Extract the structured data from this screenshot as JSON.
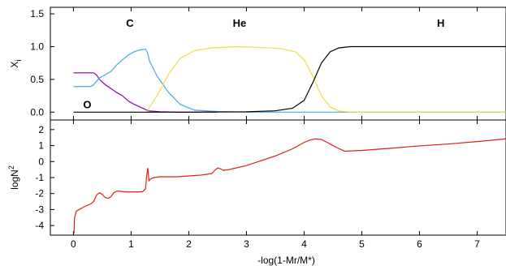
{
  "chart_data": [
    {
      "type": "line",
      "panel": "top",
      "ylabel_main": "X",
      "ylabel_sub": "i",
      "xlim": [
        -0.4,
        7.5
      ],
      "ylim": [
        -0.12,
        1.6
      ],
      "yticks": [
        "0.0",
        "0.5",
        "1.0",
        "1.5"
      ],
      "ytick_values": [
        0,
        0.5,
        1.0,
        1.5
      ],
      "grid": false,
      "annotations": [
        {
          "text": "C",
          "x": 0.98,
          "y": 1.3
        },
        {
          "text": "He",
          "x": 2.88,
          "y": 1.3
        },
        {
          "text": "H",
          "x": 6.37,
          "y": 1.3
        },
        {
          "text": "O",
          "x": 0.24,
          "y": 0.06
        }
      ],
      "series": [
        {
          "species": "O",
          "color": "#8800aa",
          "x": [
            0,
            0.35,
            0.4,
            0.45,
            0.55,
            0.65,
            0.75,
            0.85,
            0.95,
            1.05,
            1.15,
            1.25,
            1.3,
            1.5,
            1.8,
            2.5
          ],
          "y": [
            0.6,
            0.6,
            0.57,
            0.5,
            0.42,
            0.36,
            0.3,
            0.25,
            0.17,
            0.12,
            0.08,
            0.04,
            0.02,
            0.005,
            0.0,
            0.0
          ]
        },
        {
          "species": "C",
          "color": "#44aadd",
          "x": [
            0,
            0.3,
            0.35,
            0.45,
            0.55,
            0.65,
            0.75,
            0.85,
            0.95,
            1.05,
            1.15,
            1.25,
            1.28,
            1.32,
            1.45,
            1.65,
            1.85,
            2.1,
            2.5,
            3.0,
            7.5
          ],
          "y": [
            0.39,
            0.39,
            0.42,
            0.52,
            0.57,
            0.62,
            0.72,
            0.8,
            0.87,
            0.92,
            0.95,
            0.96,
            0.92,
            0.78,
            0.55,
            0.3,
            0.12,
            0.03,
            0.01,
            0.0,
            0.0
          ]
        },
        {
          "species": "He",
          "color": "#eedd44",
          "x": [
            1.28,
            1.3,
            1.45,
            1.65,
            1.85,
            2.1,
            2.4,
            2.8,
            3.2,
            3.6,
            3.85,
            4.0,
            4.15,
            4.3,
            4.45,
            4.6,
            4.8,
            7.5
          ],
          "y": [
            0.0,
            0.05,
            0.25,
            0.58,
            0.82,
            0.94,
            0.98,
            1.0,
            0.99,
            0.97,
            0.92,
            0.8,
            0.55,
            0.25,
            0.08,
            0.02,
            0.0,
            0.0
          ]
        },
        {
          "species": "H",
          "color": "#000000",
          "x": [
            0,
            2.0,
            3.0,
            3.5,
            3.8,
            4.0,
            4.15,
            4.3,
            4.45,
            4.6,
            4.8,
            5.2,
            7.5
          ],
          "y": [
            0.0,
            0.0,
            0.005,
            0.02,
            0.06,
            0.18,
            0.45,
            0.75,
            0.92,
            0.98,
            1.0,
            1.0,
            1.0
          ]
        }
      ]
    },
    {
      "type": "line",
      "panel": "bottom",
      "ylabel_main": "logN",
      "ylabel_sup": "2",
      "xlabel": "-log(1-Mr/M*)",
      "xlim": [
        -0.4,
        7.5
      ],
      "ylim": [
        -4.6,
        2.6
      ],
      "yticks": [
        "2",
        "1",
        "0",
        "-1",
        "-2",
        "-3",
        "-4"
      ],
      "ytick_values": [
        2,
        1,
        0,
        -1,
        -2,
        -3,
        -4
      ],
      "xticks": [
        "0",
        "1",
        "2",
        "3",
        "4",
        "5",
        "6",
        "7"
      ],
      "xtick_values": [
        0,
        1,
        2,
        3,
        4,
        5,
        6,
        7
      ],
      "grid": false,
      "series": [
        {
          "color": "#dd2211",
          "x": [
            0.01,
            0.02,
            0.05,
            0.1,
            0.2,
            0.3,
            0.35,
            0.4,
            0.45,
            0.5,
            0.55,
            0.6,
            0.65,
            0.7,
            0.75,
            0.8,
            0.9,
            1.0,
            1.1,
            1.2,
            1.25,
            1.27,
            1.29,
            1.31,
            1.35,
            1.4,
            1.5,
            1.6,
            1.8,
            2.0,
            2.2,
            2.4,
            2.45,
            2.5,
            2.55,
            2.6,
            2.7,
            3.0,
            3.5,
            3.8,
            4.0,
            4.1,
            4.2,
            4.3,
            4.4,
            4.5,
            4.6,
            4.7,
            5.0,
            5.5,
            6.0,
            6.5,
            7.0,
            7.5
          ],
          "y": [
            -4.5,
            -3.5,
            -3.1,
            -3.0,
            -2.8,
            -2.65,
            -2.5,
            -2.1,
            -1.95,
            -2.05,
            -2.25,
            -2.3,
            -2.2,
            -1.95,
            -1.85,
            -1.85,
            -1.9,
            -1.9,
            -1.9,
            -1.88,
            -1.7,
            -0.9,
            -0.4,
            -1.2,
            -1.05,
            -1.0,
            -0.95,
            -0.95,
            -0.95,
            -0.9,
            -0.85,
            -0.75,
            -0.55,
            -0.4,
            -0.45,
            -0.55,
            -0.5,
            -0.25,
            0.35,
            0.8,
            1.2,
            1.35,
            1.42,
            1.38,
            1.2,
            1.0,
            0.82,
            0.65,
            0.7,
            0.83,
            0.98,
            1.1,
            1.25,
            1.42
          ]
        }
      ]
    }
  ]
}
